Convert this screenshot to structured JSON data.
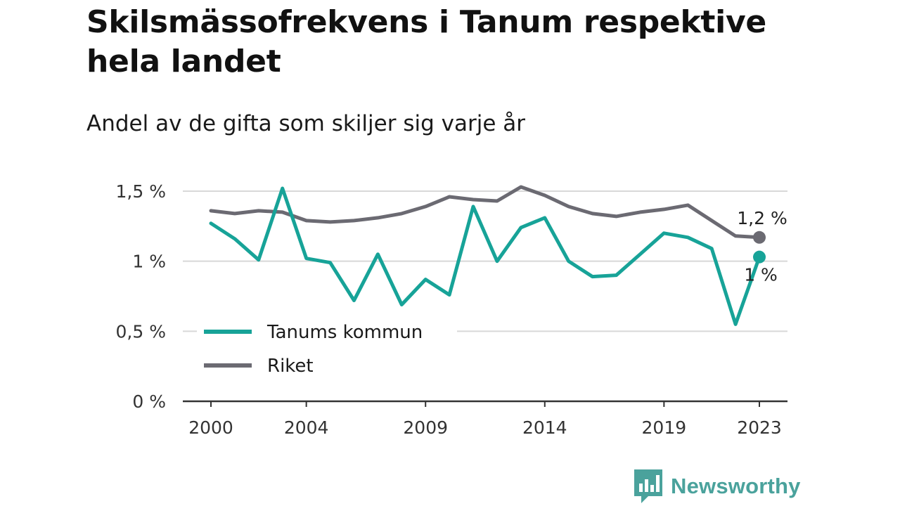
{
  "header": {
    "title": "Skilsmässofrekvens i Tanum respektive hela landet",
    "subtitle": "Andel av de gifta som skiljer sig varje år"
  },
  "brand": {
    "name": "Newsworthy",
    "color": "#4aa29c",
    "icon": "chart-speech-bubble-logo"
  },
  "chart_data": {
    "type": "line",
    "x": [
      2000,
      2001,
      2002,
      2003,
      2004,
      2005,
      2006,
      2007,
      2008,
      2009,
      2010,
      2011,
      2012,
      2013,
      2014,
      2015,
      2016,
      2017,
      2018,
      2019,
      2020,
      2021,
      2022,
      2023
    ],
    "series": [
      {
        "name": "Tanums kommun",
        "color": "#17a398",
        "values": [
          1.27,
          1.16,
          1.01,
          1.52,
          1.02,
          0.99,
          0.72,
          1.05,
          0.69,
          0.87,
          0.76,
          1.39,
          1.0,
          1.24,
          1.31,
          1.0,
          0.89,
          0.9,
          1.05,
          1.2,
          1.17,
          1.09,
          0.55,
          1.03
        ],
        "end_label": "1 %"
      },
      {
        "name": "Riket",
        "color": "#6b6a72",
        "values": [
          1.36,
          1.34,
          1.36,
          1.35,
          1.29,
          1.28,
          1.29,
          1.31,
          1.34,
          1.39,
          1.46,
          1.44,
          1.43,
          1.53,
          1.47,
          1.39,
          1.34,
          1.32,
          1.35,
          1.37,
          1.4,
          1.29,
          1.18,
          1.17
        ],
        "end_label": "1,2 %"
      }
    ],
    "ylim": [
      0,
      1.5
    ],
    "y_ticks": [
      {
        "value": 0,
        "label": "0 %"
      },
      {
        "value": 0.5,
        "label": "0,5 %"
      },
      {
        "value": 1,
        "label": "1 %"
      },
      {
        "value": 1.5,
        "label": "1,5 %"
      }
    ],
    "x_ticks": [
      {
        "value": 2000,
        "label": "2000"
      },
      {
        "value": 2004,
        "label": "2004"
      },
      {
        "value": 2009,
        "label": "2009"
      },
      {
        "value": 2014,
        "label": "2014"
      },
      {
        "value": 2019,
        "label": "2019"
      },
      {
        "value": 2023,
        "label": "2023"
      }
    ],
    "grid": true,
    "legend_position": "bottom-left"
  }
}
